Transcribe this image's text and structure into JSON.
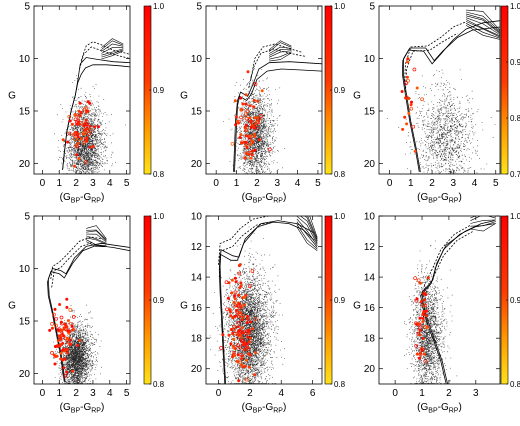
{
  "chart_data": [
    {
      "type": "scatter",
      "xlabel": "(G_BP-G_RP)",
      "ylabel": "G",
      "xlim": [
        -0.5,
        5.2
      ],
      "ylim": [
        21,
        5
      ],
      "xticks": [
        0,
        1,
        2,
        3,
        4,
        5
      ],
      "yticks": [
        5,
        10,
        15,
        20
      ],
      "colorbar": {
        "range": [
          0.8,
          1.0
        ],
        "ticks": [
          0.8,
          0.9,
          1.0
        ]
      },
      "field": {
        "cx": 2.5,
        "cy": 18.3,
        "sx": 0.65,
        "sy": 1.9,
        "n": 2600
      },
      "members": {
        "cx": 2.3,
        "cy": 16.8,
        "sx": 0.35,
        "sy": 1.6,
        "n": 70
      },
      "isochrone_tracks": [
        [
          [
            1.2,
            20.6
          ],
          [
            1.3,
            19.0
          ],
          [
            1.45,
            17.0
          ],
          [
            1.7,
            15.0
          ],
          [
            1.95,
            13.5
          ],
          [
            2.1,
            12.3
          ],
          [
            2.3,
            11.5
          ],
          [
            2.55,
            10.9
          ],
          [
            3.0,
            10.6
          ],
          [
            3.8,
            10.6
          ],
          [
            4.6,
            10.7
          ],
          [
            5.2,
            10.8
          ]
        ],
        [
          [
            1.2,
            20.6
          ],
          [
            1.3,
            19.0
          ],
          [
            1.45,
            17.0
          ],
          [
            1.7,
            15.0
          ],
          [
            1.95,
            13.5
          ],
          [
            2.1,
            12.1
          ],
          [
            2.25,
            10.5
          ],
          [
            2.6,
            9.9
          ],
          [
            3.3,
            10.1
          ],
          [
            4.2,
            10.3
          ],
          [
            5.2,
            10.4
          ]
        ]
      ],
      "isochrone_dashed": [
        [
          [
            2.3,
            10.2
          ],
          [
            2.6,
            8.8
          ],
          [
            3.0,
            8.4
          ],
          [
            3.5,
            8.7
          ],
          [
            4.2,
            9.2
          ],
          [
            5.2,
            9.6
          ]
        ],
        [
          [
            2.2,
            11.0
          ],
          [
            2.45,
            9.6
          ],
          [
            2.9,
            8.9
          ],
          [
            3.6,
            9.3
          ],
          [
            4.4,
            9.7
          ],
          [
            5.2,
            10.0
          ]
        ]
      ],
      "isochrone_bundle": {
        "from": [
          3.5,
          9.6
        ],
        "to": [
          4.8,
          9.0
        ],
        "count": 7
      }
    },
    {
      "type": "scatter",
      "xlabel": "(G_BP-G_RP)",
      "ylabel": "G",
      "xlim": [
        -0.5,
        5.2
      ],
      "ylim": [
        21,
        5
      ],
      "xticks": [
        0,
        1,
        2,
        3,
        4,
        5
      ],
      "yticks": [
        5,
        10,
        15,
        20
      ],
      "colorbar": {
        "range": [
          0.8,
          1.0
        ],
        "ticks": [
          0.8,
          0.9,
          1.0
        ]
      },
      "field": {
        "cx": 1.9,
        "cy": 17.4,
        "sx": 0.5,
        "sy": 2.2,
        "n": 2200
      },
      "members": {
        "cx": 1.6,
        "cy": 16.8,
        "sx": 0.35,
        "sy": 2.0,
        "n": 75
      },
      "isochrone_tracks": [
        [
          [
            0.9,
            20.8
          ],
          [
            0.95,
            18.5
          ],
          [
            1.0,
            16.5
          ],
          [
            1.05,
            14.5
          ],
          [
            1.15,
            13.6
          ],
          [
            1.5,
            14.0
          ],
          [
            1.75,
            13.3
          ],
          [
            2.0,
            12.0
          ],
          [
            2.5,
            11.2
          ],
          [
            3.2,
            11.0
          ],
          [
            4.2,
            11.1
          ],
          [
            5.2,
            11.2
          ]
        ],
        [
          [
            0.85,
            20.8
          ],
          [
            0.9,
            18.5
          ],
          [
            0.95,
            16.0
          ],
          [
            1.05,
            14.0
          ],
          [
            1.2,
            13.2
          ],
          [
            1.55,
            13.6
          ],
          [
            1.8,
            12.5
          ],
          [
            2.1,
            11.0
          ],
          [
            2.6,
            10.4
          ],
          [
            3.6,
            10.3
          ],
          [
            5.2,
            10.5
          ]
        ]
      ],
      "isochrone_dashed": [
        [
          [
            1.7,
            12.0
          ],
          [
            1.9,
            10.0
          ],
          [
            2.3,
            8.9
          ],
          [
            2.9,
            8.6
          ],
          [
            3.5,
            9.0
          ],
          [
            4.2,
            9.4
          ]
        ],
        [
          [
            1.6,
            12.8
          ],
          [
            1.85,
            10.8
          ],
          [
            2.2,
            9.5
          ],
          [
            2.8,
            9.1
          ],
          [
            3.6,
            9.5
          ],
          [
            4.4,
            9.8
          ]
        ]
      ],
      "isochrone_bundle": {
        "from": [
          2.6,
          9.8
        ],
        "to": [
          3.7,
          9.2
        ],
        "count": 7
      }
    },
    {
      "type": "scatter",
      "xlabel": "(G_BP-G_RP)",
      "ylabel": "G",
      "xlim": [
        -0.5,
        5.2
      ],
      "ylim": [
        21,
        5
      ],
      "xticks": [
        0,
        1,
        2,
        3,
        4,
        5
      ],
      "yticks": [
        5,
        10,
        15,
        20
      ],
      "colorbar": {
        "range": [
          0.7,
          1.0
        ],
        "ticks": [
          0.7,
          0.8,
          0.9,
          1.0
        ]
      },
      "field": {
        "cx": 2.6,
        "cy": 17.5,
        "sx": 0.8,
        "sy": 2.4,
        "n": 1300
      },
      "members": {
        "cx": 0.85,
        "cy": 13.5,
        "sx": 0.2,
        "sy": 2.2,
        "n": 22
      },
      "isochrone_tracks": [
        [
          [
            1.4,
            20.8
          ],
          [
            1.2,
            18.5
          ],
          [
            0.95,
            16.0
          ],
          [
            0.75,
            13.5
          ],
          [
            0.6,
            11.5
          ],
          [
            0.62,
            10.2
          ],
          [
            0.9,
            9.2
          ],
          [
            1.6,
            9.3
          ],
          [
            2.0,
            10.5
          ],
          [
            2.4,
            9.6
          ],
          [
            3.0,
            8.2
          ],
          [
            3.6,
            7.2
          ],
          [
            4.4,
            6.6
          ],
          [
            5.2,
            6.4
          ]
        ],
        [
          [
            1.45,
            20.8
          ],
          [
            1.25,
            18.5
          ],
          [
            1.0,
            16.0
          ],
          [
            0.8,
            13.5
          ],
          [
            0.65,
            11.5
          ],
          [
            0.66,
            10.0
          ],
          [
            0.95,
            9.0
          ],
          [
            1.7,
            9.0
          ],
          [
            2.1,
            10.2
          ],
          [
            2.5,
            9.3
          ],
          [
            3.2,
            8.0
          ],
          [
            3.9,
            7.3
          ],
          [
            5.2,
            7.0
          ]
        ]
      ],
      "isochrone_dashed": [
        [
          [
            0.7,
            12.5
          ],
          [
            0.75,
            10.5
          ],
          [
            1.0,
            8.9
          ],
          [
            1.8,
            8.8
          ],
          [
            2.4,
            8.0
          ],
          [
            3.0,
            7.0
          ],
          [
            3.6,
            6.5
          ]
        ],
        [
          [
            0.75,
            13.2
          ],
          [
            0.8,
            11.0
          ],
          [
            1.1,
            9.3
          ],
          [
            1.9,
            9.2
          ],
          [
            2.5,
            8.4
          ],
          [
            3.2,
            7.6
          ]
        ]
      ],
      "isochrone_bundle": {
        "from": [
          3.6,
          6.2
        ],
        "to": [
          5.2,
          7.8
        ],
        "count": 9
      }
    },
    {
      "type": "scatter",
      "xlabel": "(G_BP-G_RP)",
      "ylabel": "G",
      "xlim": [
        -0.5,
        5.2
      ],
      "ylim": [
        21,
        5
      ],
      "xticks": [
        0,
        1,
        2,
        3,
        4,
        5
      ],
      "yticks": [
        5,
        10,
        15,
        20
      ],
      "colorbar": {
        "range": [
          0.8,
          1.0
        ],
        "ticks": [
          0.8,
          0.9,
          1.0
        ]
      },
      "field": {
        "cx": 2.0,
        "cy": 18.6,
        "sx": 0.55,
        "sy": 1.6,
        "n": 3000
      },
      "members": {
        "cx": 1.3,
        "cy": 16.5,
        "sx": 0.35,
        "sy": 1.9,
        "n": 80
      },
      "isochrone_tracks": [
        [
          [
            1.3,
            20.8
          ],
          [
            1.1,
            18.5
          ],
          [
            0.8,
            16.0
          ],
          [
            0.55,
            14.0
          ],
          [
            0.35,
            12.6
          ],
          [
            0.3,
            11.3
          ],
          [
            0.5,
            10.3
          ],
          [
            1.0,
            10.5
          ],
          [
            1.3,
            10.9
          ],
          [
            1.8,
            9.5
          ],
          [
            2.4,
            8.3
          ],
          [
            3.2,
            7.8
          ],
          [
            4.2,
            8.0
          ],
          [
            5.2,
            8.3
          ]
        ],
        [
          [
            1.35,
            20.8
          ],
          [
            1.15,
            18.5
          ],
          [
            0.85,
            16.0
          ],
          [
            0.6,
            14.0
          ],
          [
            0.4,
            12.6
          ],
          [
            0.35,
            11.0
          ],
          [
            0.6,
            10.0
          ],
          [
            1.1,
            10.2
          ],
          [
            1.4,
            10.5
          ],
          [
            1.9,
            9.0
          ],
          [
            2.6,
            7.9
          ],
          [
            3.5,
            7.6
          ],
          [
            5.2,
            8.0
          ]
        ]
      ],
      "isochrone_dashed": [
        [
          [
            0.5,
            11.0
          ],
          [
            0.6,
            9.8
          ],
          [
            1.0,
            9.4
          ],
          [
            1.5,
            8.6
          ],
          [
            2.2,
            7.4
          ],
          [
            2.9,
            7.0
          ],
          [
            3.6,
            7.2
          ]
        ],
        [
          [
            0.55,
            11.8
          ],
          [
            0.7,
            10.2
          ],
          [
            1.1,
            9.9
          ],
          [
            1.6,
            9.0
          ],
          [
            2.3,
            7.9
          ],
          [
            3.0,
            7.5
          ]
        ]
      ],
      "isochrone_bundle": {
        "from": [
          2.6,
          6.9
        ],
        "to": [
          3.8,
          7.6
        ],
        "count": 8
      }
    },
    {
      "type": "scatter",
      "xlabel": "(G_BP-G_RP)",
      "ylabel": "G",
      "xlim": [
        -0.8,
        6.6
      ],
      "ylim": [
        21,
        10
      ],
      "xticks": [
        0,
        2,
        4,
        6
      ],
      "yticks": [
        10,
        12,
        14,
        16,
        18,
        20
      ],
      "colorbar": {
        "range": [
          0.8,
          1.0
        ],
        "ticks": [
          0.8,
          0.9,
          1.0
        ]
      },
      "field": {
        "cx": 1.9,
        "cy": 17.6,
        "sx": 0.85,
        "sy": 1.9,
        "n": 4200
      },
      "members": {
        "cx": 1.4,
        "cy": 17.2,
        "sx": 0.45,
        "sy": 1.9,
        "n": 130
      },
      "isochrone_tracks": [
        [
          [
            0.4,
            21.0
          ],
          [
            0.3,
            19.0
          ],
          [
            0.2,
            17.0
          ],
          [
            0.1,
            15.0
          ],
          [
            0.05,
            13.5
          ],
          [
            0.1,
            12.5
          ],
          [
            0.8,
            12.9
          ],
          [
            1.2,
            12.9
          ],
          [
            1.6,
            11.8
          ],
          [
            2.5,
            10.7
          ],
          [
            3.5,
            10.4
          ],
          [
            4.5,
            10.5
          ],
          [
            5.4,
            10.9
          ],
          [
            6.1,
            11.6
          ]
        ],
        [
          [
            0.45,
            21.0
          ],
          [
            0.35,
            19.0
          ],
          [
            0.25,
            17.0
          ],
          [
            0.15,
            15.0
          ],
          [
            0.1,
            13.3
          ],
          [
            0.15,
            12.2
          ],
          [
            0.9,
            12.6
          ],
          [
            1.3,
            12.7
          ],
          [
            1.7,
            11.5
          ],
          [
            2.7,
            10.5
          ],
          [
            3.8,
            10.3
          ],
          [
            5.0,
            10.5
          ],
          [
            6.1,
            11.1
          ]
        ]
      ],
      "isochrone_dashed": [
        [
          [
            0.0,
            13.2
          ],
          [
            0.1,
            11.8
          ],
          [
            0.8,
            11.5
          ],
          [
            1.4,
            10.8
          ],
          [
            2.2,
            10.2
          ],
          [
            3.2,
            10.0
          ]
        ],
        [
          [
            0.05,
            14.0
          ],
          [
            0.15,
            12.3
          ],
          [
            0.9,
            12.0
          ],
          [
            1.5,
            11.3
          ],
          [
            2.4,
            10.6
          ],
          [
            3.4,
            10.4
          ]
        ]
      ],
      "isochrone_bundle": {
        "from": [
          5.0,
          10.1
        ],
        "to": [
          6.3,
          11.9
        ],
        "count": 9
      }
    },
    {
      "type": "scatter",
      "xlabel": "(G_BP-G_RP)",
      "ylabel": "G",
      "xlim": [
        -0.6,
        3.9
      ],
      "ylim": [
        21,
        10
      ],
      "xticks": [
        0,
        1,
        2,
        3
      ],
      "yticks": [
        10,
        12,
        14,
        16,
        18,
        20
      ],
      "colorbar": {
        "range": [
          0.8,
          1.0
        ],
        "ticks": [
          0.8,
          0.9,
          1.0
        ]
      },
      "field": {
        "cx": 1.2,
        "cy": 17.8,
        "sx": 0.35,
        "sy": 1.9,
        "n": 2000
      },
      "members": {
        "cx": 1.0,
        "cy": 17.1,
        "sx": 0.15,
        "sy": 1.5,
        "n": 45
      },
      "isochrone_tracks": [
        [
          [
            1.9,
            21.0
          ],
          [
            1.7,
            19.5
          ],
          [
            1.4,
            18.0
          ],
          [
            1.15,
            16.8
          ],
          [
            1.0,
            15.8
          ],
          [
            0.95,
            15.2
          ],
          [
            1.35,
            14.4
          ],
          [
            1.5,
            13.4
          ],
          [
            1.8,
            12.2
          ],
          [
            2.4,
            11.2
          ],
          [
            3.0,
            10.7
          ],
          [
            3.7,
            10.5
          ]
        ],
        [
          [
            1.95,
            21.0
          ],
          [
            1.75,
            19.5
          ],
          [
            1.45,
            18.0
          ],
          [
            1.2,
            16.8
          ],
          [
            1.05,
            15.8
          ],
          [
            1.0,
            15.0
          ],
          [
            1.4,
            14.2
          ],
          [
            1.55,
            13.1
          ],
          [
            1.9,
            11.9
          ],
          [
            2.6,
            11.0
          ],
          [
            3.2,
            10.5
          ],
          [
            3.7,
            10.3
          ]
        ]
      ],
      "isochrone_dashed": [
        [
          [
            1.0,
            16.0
          ],
          [
            1.1,
            14.5
          ],
          [
            1.4,
            13.4
          ],
          [
            1.7,
            12.2
          ],
          [
            2.2,
            11.2
          ],
          [
            2.8,
            10.6
          ]
        ],
        [
          [
            1.05,
            16.6
          ],
          [
            1.15,
            15.0
          ],
          [
            1.45,
            13.9
          ],
          [
            1.8,
            12.6
          ],
          [
            2.3,
            11.6
          ],
          [
            2.9,
            11.0
          ]
        ]
      ],
      "isochrone_bundle": {
        "from": [
          2.8,
          10.4
        ],
        "to": [
          3.75,
          10.2
        ],
        "count": 7
      }
    }
  ]
}
